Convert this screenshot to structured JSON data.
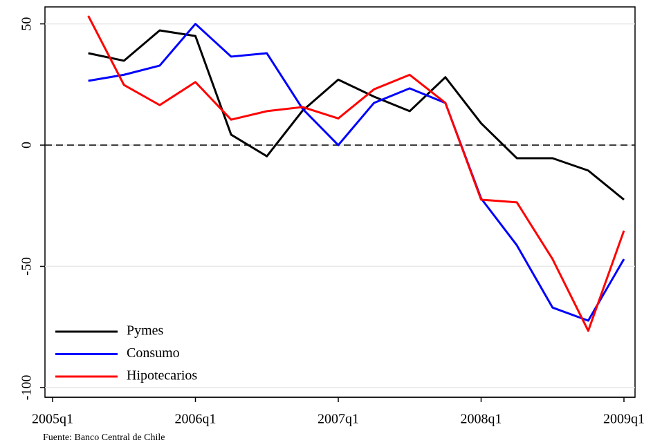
{
  "chart_data": {
    "type": "line",
    "categories": [
      "2005q1",
      null,
      null,
      null,
      "2006q1",
      null,
      null,
      null,
      "2007q1",
      null,
      null,
      null,
      "2008q1",
      null,
      null,
      null,
      "2009q1"
    ],
    "series": [
      {
        "name": "Pymes",
        "color": "#000000",
        "values": [
          null,
          37.9,
          34.8,
          47.3,
          45,
          4.3,
          -4.6,
          14.2,
          27,
          20,
          14,
          28,
          9,
          -5.4,
          -5.4,
          -10.5,
          -22.5
        ]
      },
      {
        "name": "Consumo",
        "color": "#0000ff",
        "values": [
          null,
          26.5,
          29,
          32.8,
          50,
          36.5,
          37.9,
          15,
          0,
          17.4,
          23.4,
          17.4,
          -22,
          -41.3,
          -67,
          -72.4,
          -47
        ]
      },
      {
        "name": "Hipotecarios",
        "color": "#ff0000",
        "values": [
          null,
          53.3,
          24.8,
          16.5,
          26,
          10.5,
          14,
          15.7,
          11,
          23,
          29,
          17.4,
          -22.5,
          -23.6,
          -47,
          -76.6,
          -35.3
        ]
      }
    ],
    "ylim": [
      -104,
      57
    ],
    "yticks": [
      -100,
      -50,
      0,
      50
    ],
    "grid": true,
    "reference_line": 0,
    "legend": "lower-left",
    "note": "Fuente: Banco Central de Chile"
  }
}
